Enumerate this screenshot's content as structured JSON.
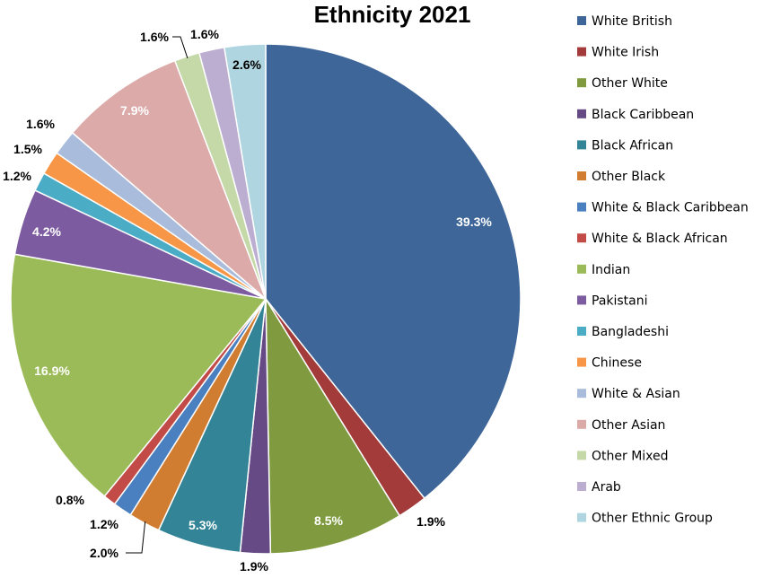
{
  "chart_data": {
    "type": "pie",
    "title": "Ethnicity 2021",
    "legend_position": "right",
    "categories": [
      "White British",
      "White Irish",
      "Other White",
      "Black Caribbean",
      "Black African",
      "Other Black",
      "White & Black Caribbean",
      "White & Black African",
      "Indian",
      "Pakistani",
      "Bangladeshi",
      "Chinese",
      "White & Asian",
      "Other Asian",
      "Other Mixed",
      "Arab",
      "Other Ethnic Group"
    ],
    "values": [
      39.3,
      1.9,
      8.5,
      1.9,
      5.3,
      2.0,
      1.2,
      0.8,
      16.9,
      4.2,
      1.2,
      1.5,
      1.6,
      7.9,
      1.6,
      1.6,
      2.6
    ],
    "data_labels": [
      "39.3%",
      "1.9%",
      "8.5%",
      "1.9%",
      "5.3%",
      "2.0%",
      "1.2%",
      "0.8%",
      "16.9%",
      "4.2%",
      "1.2%",
      "1.5%",
      "1.6%",
      "7.9%",
      "1.6%",
      "1.6%",
      "2.6%"
    ],
    "colors": [
      "#3E6699",
      "#A33B3A",
      "#7F9A3F",
      "#654A86",
      "#338496",
      "#D07C31",
      "#4A7FC0",
      "#C24A47",
      "#9BBB59",
      "#7D5BA0",
      "#4BACC6",
      "#F79646",
      "#A9BCDC",
      "#DBAAA9",
      "#C4D9A7",
      "#BBAED0",
      "#AFD5E1"
    ]
  }
}
